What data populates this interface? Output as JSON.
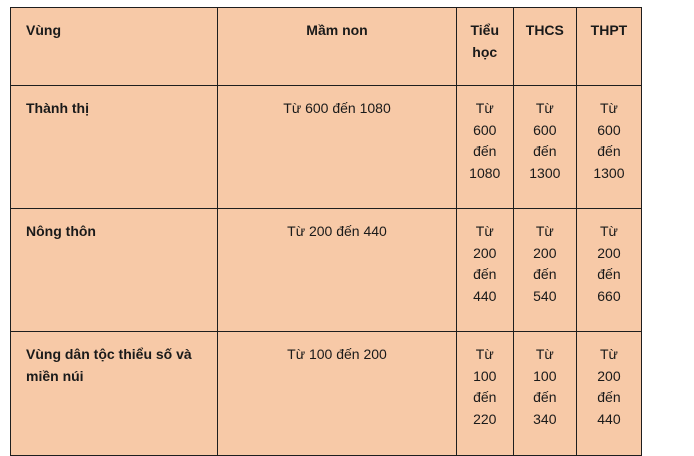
{
  "headers": {
    "region": "Vùng",
    "preschool": "Mầm non",
    "primary_line1": "Tiểu",
    "primary_line2": "học",
    "lower_secondary": "THCS",
    "upper_secondary": "THPT"
  },
  "rows": [
    {
      "region": "Thành thị",
      "preschool": "Từ 600 đến 1080",
      "primary": [
        "Từ",
        "600",
        "đến",
        "1080"
      ],
      "lower_secondary": [
        "Từ",
        "600",
        "đến",
        "1300"
      ],
      "upper_secondary": [
        "Từ",
        "600",
        "đến",
        "1300"
      ]
    },
    {
      "region": "Nông thôn",
      "preschool": "Từ 200 đến 440",
      "primary": [
        "Từ",
        "200",
        "đến",
        "440"
      ],
      "lower_secondary": [
        "Từ",
        "200",
        "đến",
        "540"
      ],
      "upper_secondary": [
        "Từ",
        "200",
        "đến",
        "660"
      ]
    },
    {
      "region_line1": "Vùng dân tộc thiểu số và",
      "region_line2": "miền núi",
      "preschool": "Từ 100 đến 200",
      "primary": [
        "Từ",
        "100",
        "đến",
        "220"
      ],
      "lower_secondary": [
        "Từ",
        "100",
        "đến",
        "340"
      ],
      "upper_secondary": [
        "Từ",
        "200",
        "đến",
        "440"
      ]
    }
  ],
  "colors": {
    "background": "#f7c9a7",
    "border": "#1e1e1e"
  }
}
